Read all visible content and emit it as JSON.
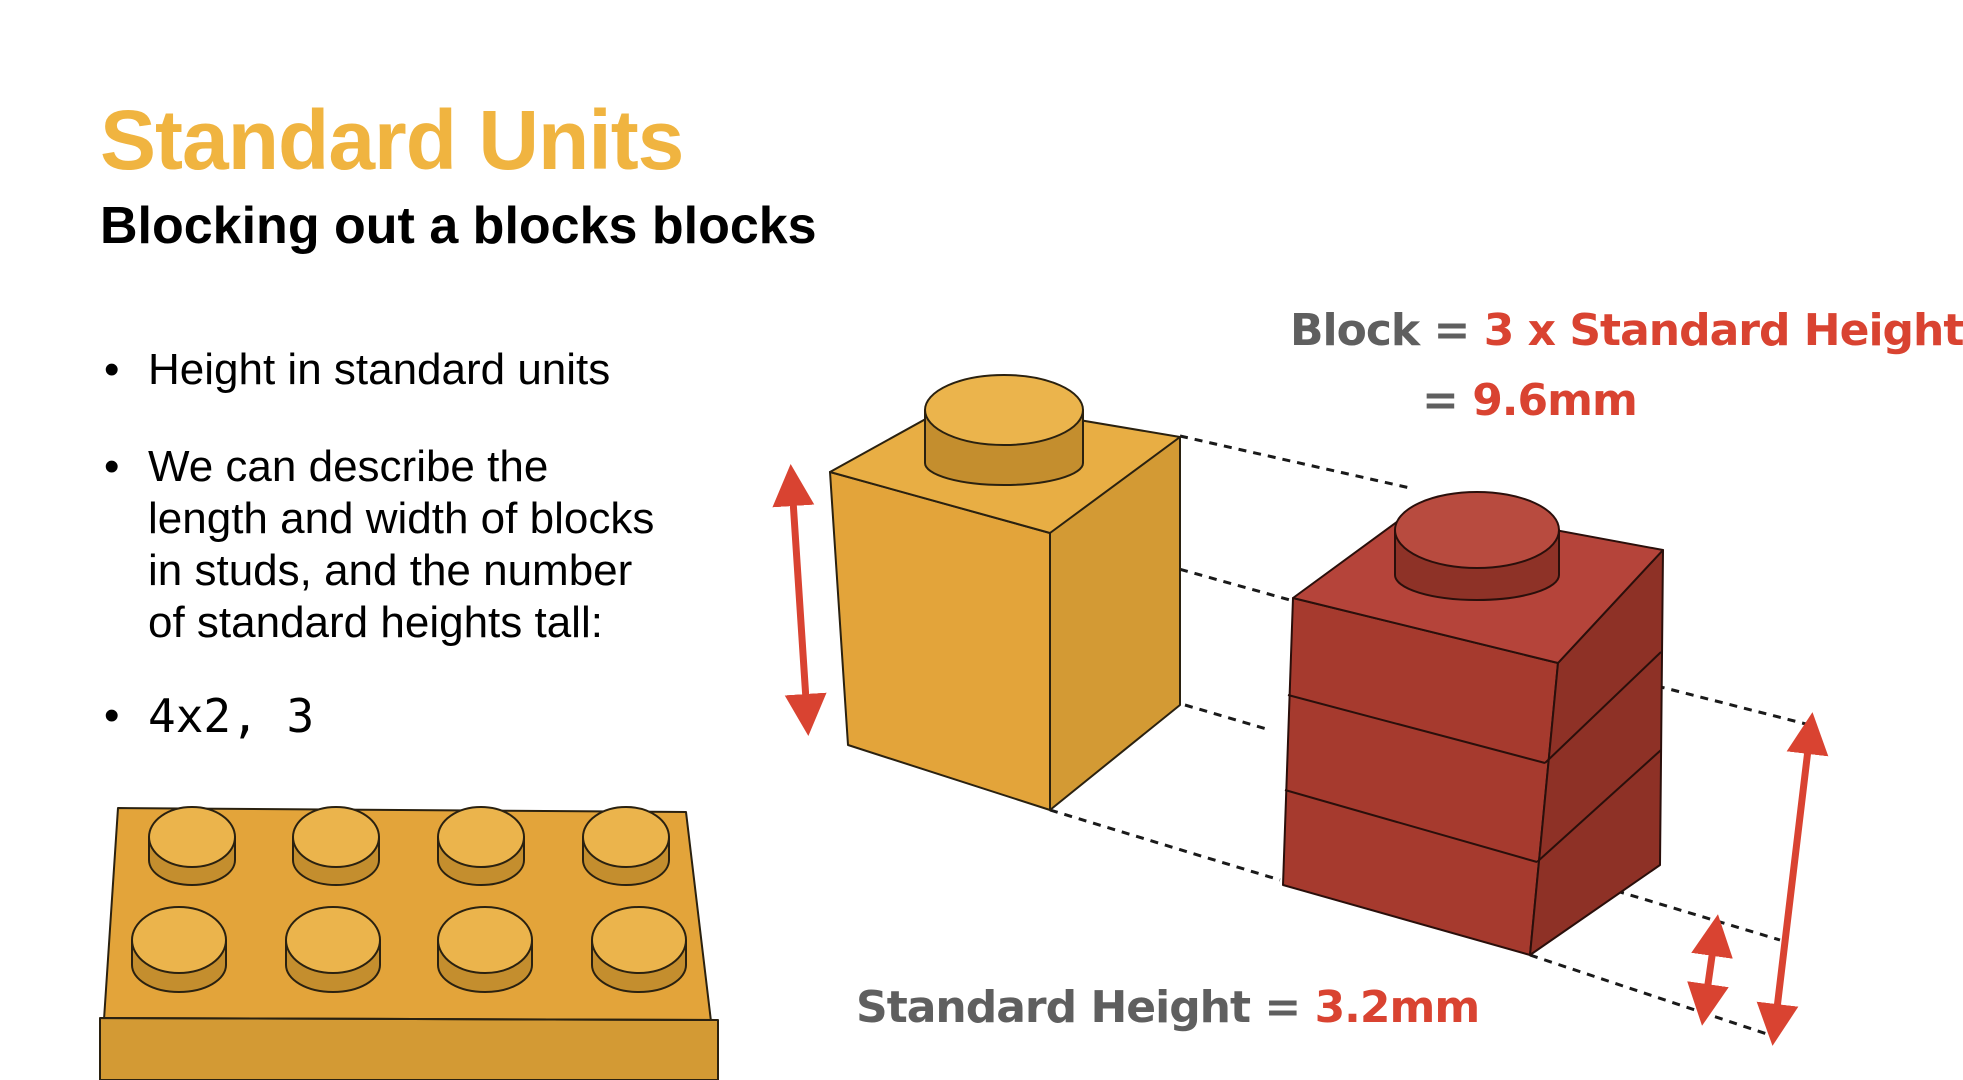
{
  "slide": {
    "title": "Standard Units",
    "subtitle": "Blocking out a blocks blocks"
  },
  "bullets": [
    {
      "dot": "•",
      "lines": [
        "Height in standard units"
      ]
    },
    {
      "dot": "•",
      "lines": [
        "We can describe the",
        "length and width of blocks",
        "in studs, and the number",
        "of standard heights tall:"
      ]
    },
    {
      "dot": "•",
      "lines": [
        "4x2, 3"
      ]
    }
  ],
  "labels": {
    "block_name": "Block",
    "block_eq": " = ",
    "block_value": "3 x Standard Height",
    "block_eq2": "= ",
    "block_mm": "9.6mm",
    "std_name": "Standard Height",
    "std_eq": " = ",
    "std_value": "3.2mm"
  },
  "colors": {
    "accent_yellow": "#F0B440",
    "accent_red": "#D94331",
    "label_grey": "#5F5F5F",
    "brick_yellow": "#E3A43A",
    "brick_red": "#A63A2E"
  },
  "illustrations": [
    "yellow-1x1-brick",
    "red-1x1-brick-three-layers",
    "yellow-4x2-brick",
    "height-arrows",
    "dashed-projection-lines"
  ]
}
